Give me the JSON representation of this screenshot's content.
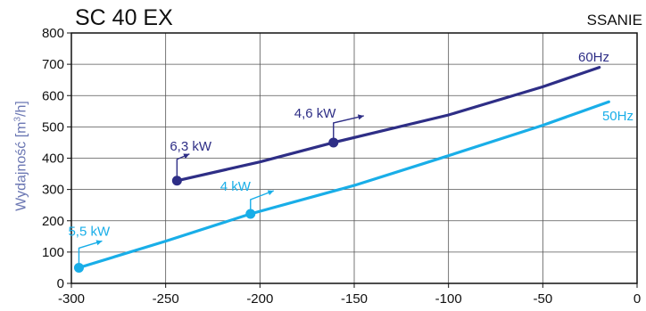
{
  "chart_data": {
    "type": "line",
    "title": "SC 40 EX",
    "subtitle": "SSANIE",
    "ylabel": {
      "pre": "Wydajność [m",
      "sup": "3",
      "post": "/h]"
    },
    "xlabel": "",
    "xlim": [
      -300,
      0
    ],
    "ylim": [
      0,
      800
    ],
    "xticks": [
      "-300",
      "-250",
      "-200",
      "-150",
      "-100",
      "-50",
      "0"
    ],
    "yticks": [
      "0",
      "100",
      "200",
      "300",
      "400",
      "500",
      "600",
      "700",
      "800"
    ],
    "grid": true,
    "colors": {
      "60Hz": "#2e2e86",
      "50Hz": "#19aee8",
      "axis": "#111111",
      "ylabel": "#6b77b3"
    },
    "series": [
      {
        "name": "60Hz",
        "x": [
          -244,
          -200,
          -161,
          -100,
          -50,
          -20
        ],
        "y": [
          328,
          388,
          450,
          538,
          628,
          690
        ],
        "markers": [
          {
            "x": -244,
            "y": 328,
            "label": "6,3 kW"
          },
          {
            "x": -161,
            "y": 450,
            "label": "4,6 kW"
          }
        ]
      },
      {
        "name": "50Hz",
        "x": [
          -296,
          -250,
          -205,
          -150,
          -100,
          -50,
          -15
        ],
        "y": [
          50,
          135,
          222,
          313,
          408,
          505,
          580
        ],
        "markers": [
          {
            "x": -296,
            "y": 50,
            "label": "5,5 kW"
          },
          {
            "x": -205,
            "y": 222,
            "label": "4 kW"
          }
        ]
      }
    ]
  }
}
